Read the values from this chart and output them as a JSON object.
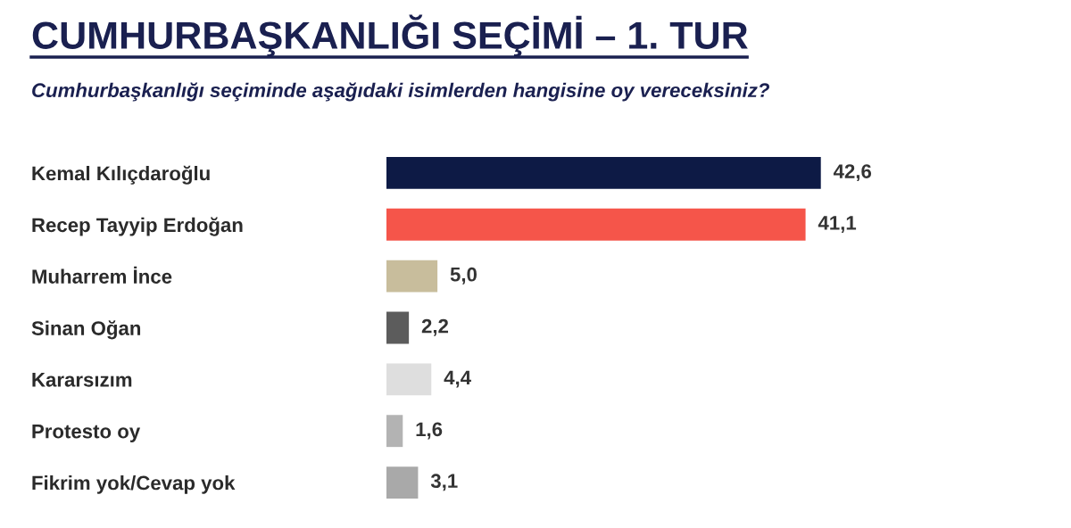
{
  "chart_data": {
    "type": "bar",
    "orientation": "horizontal",
    "title": "CUMHURBAŞKANLIĞI SEÇİMİ – 1. TUR",
    "subtitle": "Cumhurbaşkanlığı seçiminde aşağıdaki isimlerden hangisine oy vereceksiniz?",
    "categories": [
      "Kemal Kılıçdaroğlu",
      "Recep Tayyip Erdoğan",
      "Muharrem İnce",
      "Sinan Oğan",
      "Kararsızım",
      "Protesto oy",
      "Fikrim yok/Cevap yok"
    ],
    "values": [
      42.6,
      41.1,
      5.0,
      2.2,
      4.4,
      1.6,
      3.1
    ],
    "colors": [
      "#0d1a45",
      "#f5554a",
      "#c8bd9c",
      "#5c5c5c",
      "#dedede",
      "#b3b3b3",
      "#a9a9a9"
    ],
    "value_labels": [
      "42,6",
      "41,1",
      "5,0",
      "2,2",
      "4,4",
      "1,6",
      "3,1"
    ],
    "tick_labels": "y",
    "grid": false,
    "legend": false
  }
}
